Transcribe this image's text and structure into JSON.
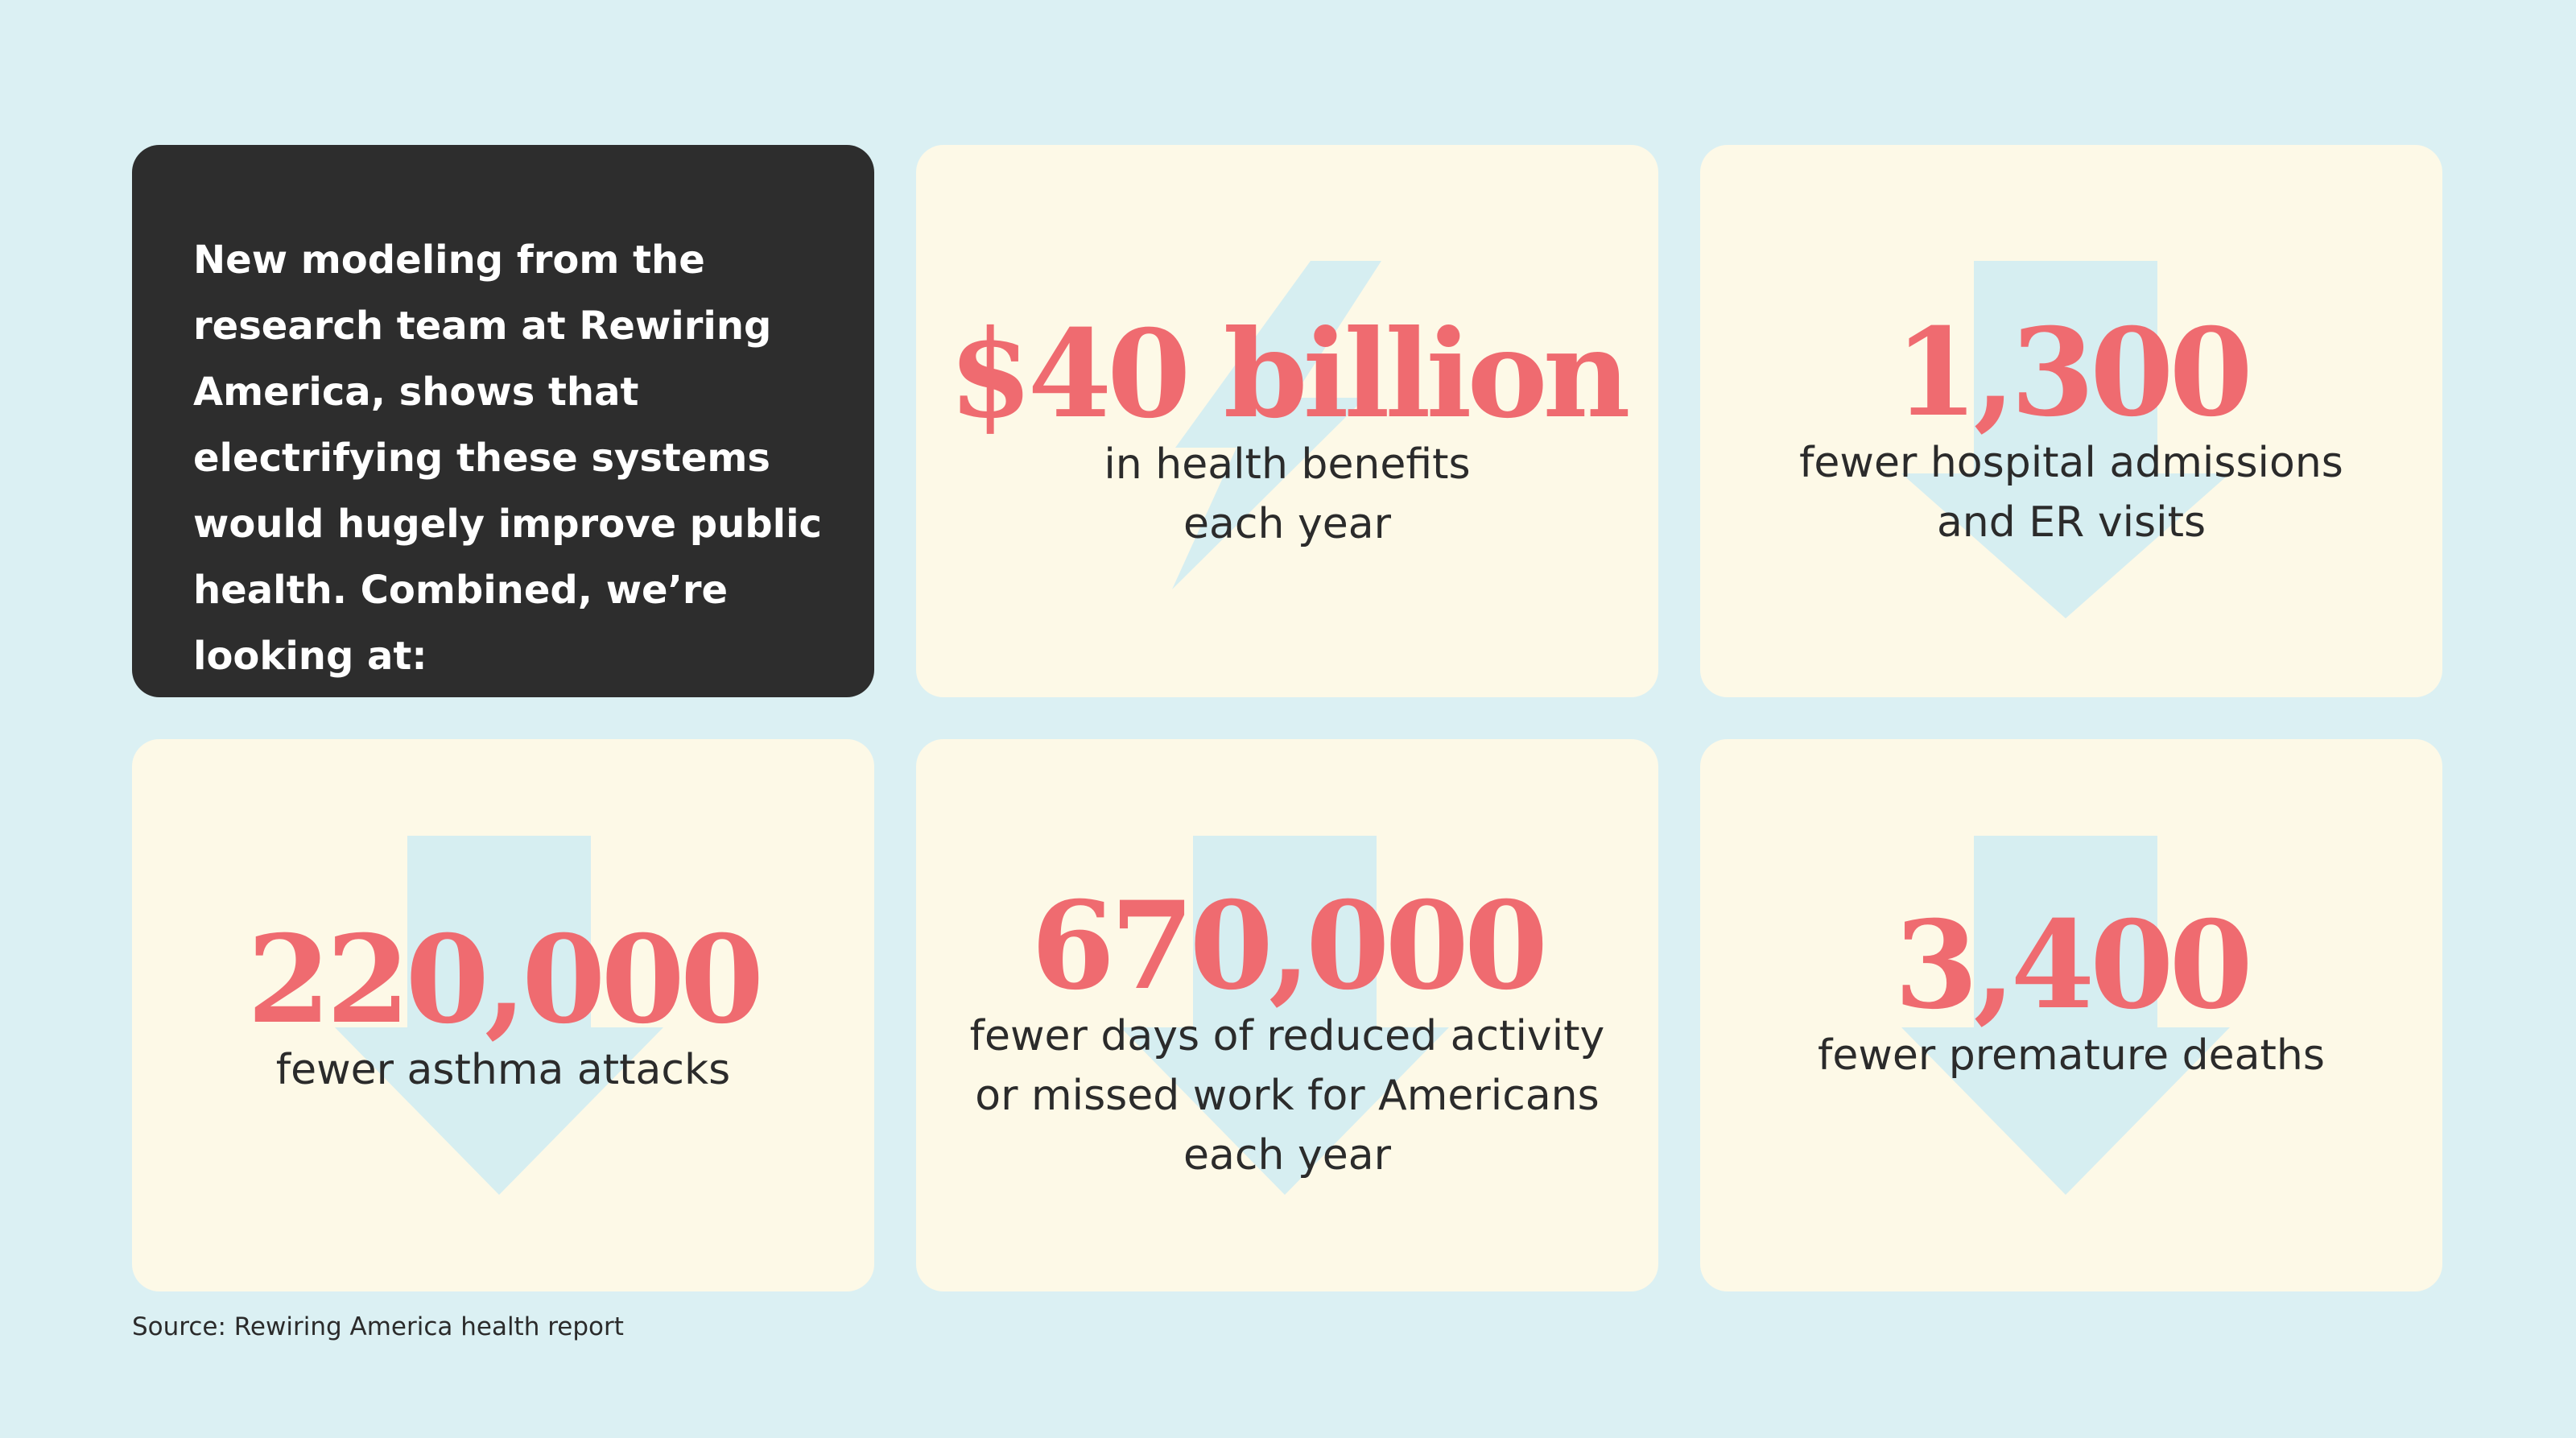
{
  "colors": {
    "background": "#dbf0f3",
    "card": "#fdf9e7",
    "dark_card": "#2d2d2d",
    "accent": "#ef6b70",
    "icon": "#d6eef1",
    "text": "#2b2b2b"
  },
  "intro": {
    "text": "New modeling from the research team at Rewiring America, shows that electrifying these systems would hugely improve public health. Combined, we’re looking at:"
  },
  "stats": [
    {
      "value": "$40 billion",
      "description": "in health benefits\neach year",
      "icon": "lightning-bolt-icon"
    },
    {
      "value": "1,300",
      "description": "fewer hospital admissions\nand ER visits",
      "icon": "down-arrow-icon"
    },
    {
      "value": "220,000",
      "description": "fewer asthma attacks",
      "icon": "down-arrow-icon"
    },
    {
      "value": "670,000",
      "description": "fewer days of reduced activity\nor missed work for Americans\neach year",
      "icon": "down-arrow-icon"
    },
    {
      "value": "3,400",
      "description": "fewer premature deaths",
      "icon": "down-arrow-icon"
    }
  ],
  "source": "Source: Rewiring America health report"
}
